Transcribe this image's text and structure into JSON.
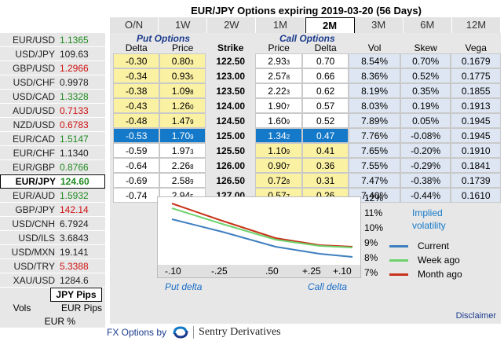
{
  "title": "EUR/JPY Options expiring 2019-03-20 (56 Days)",
  "tabs": [
    "O/N",
    "1W",
    "2W",
    "1M",
    "2M",
    "3M",
    "6M",
    "12M"
  ],
  "active_tab": "2M",
  "sidebar": {
    "pairs": [
      {
        "name": "EUR/USD",
        "rate": "1.1365",
        "color": "#1f8a1f"
      },
      {
        "name": "USD/JPY",
        "rate": "109.63",
        "color": "#222222"
      },
      {
        "name": "GBP/USD",
        "rate": "1.2966",
        "color": "#d01010"
      },
      {
        "name": "USD/CHF",
        "rate": "0.9978",
        "color": "#222222"
      },
      {
        "name": "USD/CAD",
        "rate": "1.3328",
        "color": "#1f8a1f"
      },
      {
        "name": "AUD/USD",
        "rate": "0.7133",
        "color": "#d01010"
      },
      {
        "name": "NZD/USD",
        "rate": "0.6783",
        "color": "#d01010"
      },
      {
        "name": "EUR/CAD",
        "rate": "1.5147",
        "color": "#1f8a1f"
      },
      {
        "name": "EUR/CHF",
        "rate": "1.1340",
        "color": "#222222"
      },
      {
        "name": "EUR/GBP",
        "rate": "0.8766",
        "color": "#1f8a1f"
      },
      {
        "name": "EUR/JPY",
        "rate": "124.60",
        "color": "#1f8a1f"
      },
      {
        "name": "EUR/AUD",
        "rate": "1.5932",
        "color": "#1f8a1f"
      },
      {
        "name": "GBP/JPY",
        "rate": "142.14",
        "color": "#d01010"
      },
      {
        "name": "USD/CNH",
        "rate": "6.7924",
        "color": "#222222"
      },
      {
        "name": "USD/ILS",
        "rate": "3.6843",
        "color": "#222222"
      },
      {
        "name": "USD/MXN",
        "rate": "19.141",
        "color": "#222222"
      },
      {
        "name": "USD/TRY",
        "rate": "5.3388",
        "color": "#d01010"
      },
      {
        "name": "XAU/USD",
        "rate": "1284.6",
        "color": "#222222"
      }
    ],
    "selected_index": 10,
    "pips_label": "JPY Pips",
    "vols_label": "Vols",
    "vols_option1": "EUR Pips",
    "vols_option2": "EUR %"
  },
  "sections": {
    "put": "Put Options",
    "call": "Call Options"
  },
  "headers": [
    "Delta",
    "Price",
    "Strike",
    "Price",
    "Delta",
    "Vol",
    "Skew",
    "Vega"
  ],
  "rows": [
    {
      "put_delta": "-0.30",
      "put_price": "0.80",
      "put_sub": "3",
      "strike": "122.50",
      "call_price": "2.93",
      "call_sub": "3",
      "call_delta": "0.70",
      "vol": "8.54%",
      "skew": "0.70%",
      "vega": "0.1679"
    },
    {
      "put_delta": "-0.34",
      "put_price": "0.93",
      "put_sub": "5",
      "strike": "123.00",
      "call_price": "2.57",
      "call_sub": "8",
      "call_delta": "0.66",
      "vol": "8.36%",
      "skew": "0.52%",
      "vega": "0.1775"
    },
    {
      "put_delta": "-0.38",
      "put_price": "1.09",
      "put_sub": "8",
      "strike": "123.50",
      "call_price": "2.22",
      "call_sub": "3",
      "call_delta": "0.62",
      "vol": "8.19%",
      "skew": "0.35%",
      "vega": "0.1855"
    },
    {
      "put_delta": "-0.43",
      "put_price": "1.26",
      "put_sub": "0",
      "strike": "124.00",
      "call_price": "1.90",
      "call_sub": "7",
      "call_delta": "0.57",
      "vol": "8.03%",
      "skew": "0.19%",
      "vega": "0.1913"
    },
    {
      "put_delta": "-0.48",
      "put_price": "1.47",
      "put_sub": "9",
      "strike": "124.50",
      "call_price": "1.60",
      "call_sub": "9",
      "call_delta": "0.52",
      "vol": "7.89%",
      "skew": "0.05%",
      "vega": "0.1945"
    },
    {
      "put_delta": "-0.53",
      "put_price": "1.70",
      "put_sub": "9",
      "strike": "125.00",
      "call_price": "1.34",
      "call_sub": "2",
      "call_delta": "0.47",
      "vol": "7.76%",
      "skew": "-0.08%",
      "vega": "0.1945"
    },
    {
      "put_delta": "-0.59",
      "put_price": "1.97",
      "put_sub": "3",
      "strike": "125.50",
      "call_price": "1.10",
      "call_sub": "9",
      "call_delta": "0.41",
      "vol": "7.65%",
      "skew": "-0.20%",
      "vega": "0.1910"
    },
    {
      "put_delta": "-0.64",
      "put_price": "2.26",
      "put_sub": "8",
      "strike": "126.00",
      "call_price": "0.90",
      "call_sub": "7",
      "call_delta": "0.36",
      "vol": "7.55%",
      "skew": "-0.29%",
      "vega": "0.1841"
    },
    {
      "put_delta": "-0.69",
      "put_price": "2.58",
      "put_sub": "9",
      "strike": "126.50",
      "call_price": "0.72",
      "call_sub": "8",
      "call_delta": "0.31",
      "vol": "7.47%",
      "skew": "-0.38%",
      "vega": "0.1739"
    },
    {
      "put_delta": "-0.74",
      "put_price": "2.94",
      "put_sub": "5",
      "strike": "127.00",
      "call_price": "0.57",
      "call_sub": "7",
      "call_delta": "0.26",
      "vol": "7.40%",
      "skew": "-0.44%",
      "vega": "0.1610"
    }
  ],
  "atm_index": 5,
  "chart_data": {
    "type": "line",
    "x": [
      -0.1,
      -0.25,
      0.5,
      0.25,
      0.1
    ],
    "x_tick_labels": [
      "-.10",
      "-.25",
      ".50",
      "+.25",
      "+.10"
    ],
    "y_tick_labels": [
      "12%",
      "11%",
      "10%",
      "9%",
      "8%",
      "7%"
    ],
    "ylim": [
      7,
      12
    ],
    "series": [
      {
        "name": "Current",
        "color": "#3f7fc0",
        "values": [
          9.8,
          9.0,
          8.05,
          7.6,
          7.4
        ]
      },
      {
        "name": "Week ago",
        "color": "#6ed36e",
        "values": [
          10.5,
          9.5,
          8.5,
          8.1,
          8.0
        ]
      },
      {
        "name": "Month ago",
        "color": "#c83218",
        "values": [
          10.8,
          9.7,
          8.6,
          8.15,
          8.05
        ]
      }
    ],
    "legend_title_1": "Implied",
    "legend_title_2": "volatility",
    "put_label": "Put delta",
    "call_label": "Call delta"
  },
  "disclaimer": "Disclaimer",
  "footer": {
    "label": "FX Options by",
    "brand": "Sentry Derivatives"
  }
}
